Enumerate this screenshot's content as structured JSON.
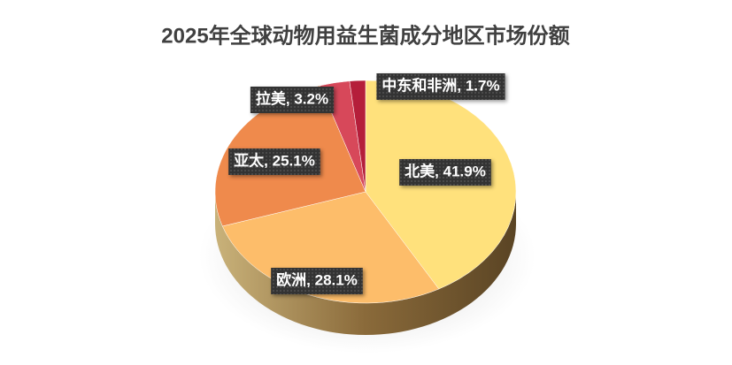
{
  "chart_data": {
    "type": "pie",
    "title": "2025年全球动物用益生菌成分地区市场份额",
    "values": [
      41.9,
      28.1,
      25.1,
      3.2,
      1.7
    ],
    "value_labels": [
      "北美, 41.9%",
      "欧洲, 28.1%",
      "亚太, 25.1%",
      "拉美, 3.2%",
      "中东和非洲, 1.7%"
    ],
    "colors": [
      "#FFE17C",
      "#FDBD6A",
      "#EF8A4C",
      "#D7485A",
      "#B51E3A"
    ]
  }
}
